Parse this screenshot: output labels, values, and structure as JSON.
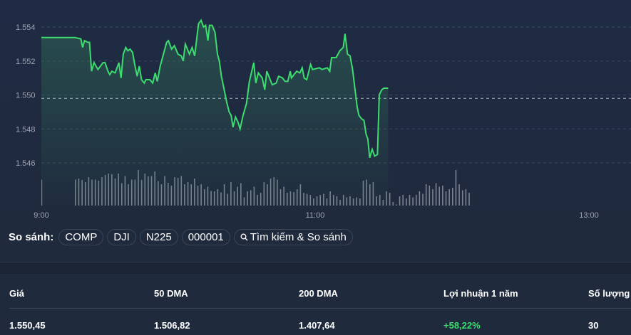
{
  "chart_data": {
    "type": "line",
    "title": "",
    "xlabel": "",
    "ylabel": "",
    "x_ticks": [
      "9:00",
      "11:00",
      "13:00"
    ],
    "x_range_minutes_from_9": [
      0,
      258
    ],
    "y_ticks": [
      "1.546",
      "1.548",
      "1.550",
      "1.552",
      "1.554"
    ],
    "y_tick_values": [
      1.546,
      1.548,
      1.55,
      1.552,
      1.554
    ],
    "ylim": [
      1.5453,
      1.5555
    ],
    "reference_line": 1.5498,
    "grid": true,
    "line_color": "#3ddc6f",
    "series": [
      {
        "name": "price",
        "t": [
          0,
          14.7,
          17.3,
          18.1,
          18.9,
          20.3,
          21.1,
          22,
          23.1,
          24.8,
          27,
          27.9,
          29.2,
          30,
          30.9,
          32.3,
          34,
          34.9,
          35.9,
          37,
          37.9,
          38.9,
          40,
          40.9,
          42,
          42.9,
          43.9,
          45.1,
          45.8,
          47.6,
          48.8,
          49.9,
          50.8,
          52.1,
          54.9,
          55.7,
          57.1,
          58.3,
          59.9,
          61.3,
          62.2,
          63.1,
          64.9,
          66.1,
          67.2,
          68.9,
          70,
          71.1,
          72,
          73,
          73.7,
          74.8,
          76.1,
          77.2,
          78,
          78.9,
          80,
          81.2,
          82.3,
          83.2,
          84,
          85.1,
          86.2,
          87.1,
          88.4,
          89.9,
          91.2,
          93.1,
          94,
          95.1,
          96.8,
          97.9,
          98.8,
          101.2,
          102.9,
          104,
          105.7,
          106.8,
          108,
          109.1,
          109.6,
          111.9,
          113.3,
          114.3,
          115.2,
          116.3,
          118,
          118.9,
          121.9,
          123,
          125.3,
          126.4,
          127.2,
          129.2,
          130.8,
          132.3,
          133.1,
          134.2,
          135.3,
          136.4,
          137.5,
          138.4,
          139.2,
          140.3,
          141.4,
          142.3,
          143.1,
          143.9,
          145,
          146.1,
          147.3,
          148.1,
          149.2,
          150.1,
          152
        ],
        "values": [
          1.55338,
          1.55338,
          1.5533,
          1.5528,
          1.5532,
          1.5531,
          1.5531,
          1.5514,
          1.5519,
          1.5515,
          1.5519,
          1.5519,
          1.5514,
          1.5512,
          1.5514,
          1.5513,
          1.5519,
          1.551,
          1.5524,
          1.5528,
          1.5526,
          1.5527,
          1.5525,
          1.5518,
          1.5511,
          1.5517,
          1.5509,
          1.5507,
          1.5509,
          1.5509,
          1.5507,
          1.5513,
          1.5508,
          1.5517,
          1.5531,
          1.5532,
          1.5527,
          1.5529,
          1.5524,
          1.5523,
          1.552,
          1.553,
          1.5524,
          1.5528,
          1.5523,
          1.5542,
          1.5544,
          1.554,
          1.5541,
          1.5532,
          1.5541,
          1.5541,
          1.5537,
          1.5524,
          1.552,
          1.5511,
          1.5504,
          1.5496,
          1.549,
          1.5488,
          1.5481,
          1.5487,
          1.5484,
          1.548,
          1.5488,
          1.5495,
          1.5508,
          1.5519,
          1.5507,
          1.5513,
          1.551,
          1.5503,
          1.5514,
          1.5506,
          1.5507,
          1.5511,
          1.551,
          1.5508,
          1.5508,
          1.5514,
          1.551,
          1.5514,
          1.5513,
          1.5516,
          1.551,
          1.5509,
          1.5518,
          1.5515,
          1.5516,
          1.5515,
          1.5516,
          1.5514,
          1.5522,
          1.5522,
          1.5526,
          1.5528,
          1.5536,
          1.5524,
          1.5523,
          1.5515,
          1.5503,
          1.5493,
          1.5488,
          1.5486,
          1.5485,
          1.5477,
          1.5474,
          1.5463,
          1.5468,
          1.5464,
          1.5465,
          1.55,
          1.5503,
          1.5504,
          1.5504
        ]
      }
    ],
    "volume": {
      "t_start": 14.7,
      "t_step": 1.45,
      "first_bar": {
        "t": 0,
        "value": 0.73
      },
      "values": [
        0.73,
        0.76,
        0.72,
        0.66,
        0.8,
        0.73,
        0.73,
        0.7,
        0.8,
        0.86,
        0.9,
        0.88,
        0.76,
        0.9,
        0.63,
        0.83,
        0.6,
        0.73,
        0.73,
        1.0,
        0.72,
        0.9,
        0.82,
        0.83,
        0.96,
        0.69,
        0.6,
        0.83,
        0.64,
        0.56,
        0.8,
        0.78,
        0.83,
        0.6,
        0.66,
        0.6,
        0.76,
        0.56,
        0.6,
        0.46,
        0.53,
        0.41,
        0.4,
        0.46,
        0.37,
        0.6,
        0.33,
        0.66,
        0.4,
        0.53,
        0.63,
        0.23,
        0.4,
        0.43,
        0.53,
        0.3,
        0.36,
        0.66,
        0.6,
        0.76,
        0.8,
        0.73,
        0.46,
        0.53,
        0.36,
        0.4,
        0.38,
        0.46,
        0.6,
        0.36,
        0.33,
        0.3,
        0.2,
        0.26,
        0.3,
        0.33,
        0.2,
        0.4,
        0.3,
        0.26,
        0.16,
        0.3,
        0.23,
        0.26,
        0.2,
        0.23,
        0.2,
        0.7,
        0.73,
        0.6,
        0.66,
        0.26,
        0.3,
        0.16,
        0.4,
        0.36,
        0.1,
        0.03,
        0.26,
        0.3,
        0.2,
        0.3,
        0.23,
        0.3,
        0.4,
        0.33,
        0.6,
        0.56,
        0.46,
        0.63,
        0.53,
        0.56,
        0.4,
        0.46,
        0.5,
        1.0,
        0.6,
        0.43,
        0.46,
        0.36
      ]
    }
  },
  "compare": {
    "label": "So sánh:",
    "chips": [
      "COMP",
      "DJI",
      "N225",
      "000001"
    ],
    "search_label": "Tìm kiếm & So sánh"
  },
  "stats": {
    "headers": [
      "Giá",
      "50 DMA",
      "200 DMA",
      "Lợi nhuận 1 năm",
      "Số lượng"
    ],
    "values": [
      "1.550,45",
      "1.506,82",
      "1.407,64",
      "+58,22%",
      "30"
    ]
  }
}
